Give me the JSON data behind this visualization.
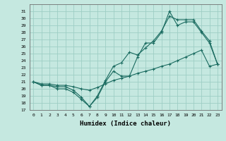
{
  "xlabel": "Humidex (Indice chaleur)",
  "xlim": [
    -0.5,
    23.5
  ],
  "ylim": [
    17,
    32
  ],
  "yticks": [
    17,
    18,
    19,
    20,
    21,
    22,
    23,
    24,
    25,
    26,
    27,
    28,
    29,
    30,
    31
  ],
  "xticks": [
    0,
    1,
    2,
    3,
    4,
    5,
    6,
    7,
    8,
    9,
    10,
    11,
    12,
    13,
    14,
    15,
    16,
    17,
    18,
    19,
    20,
    21,
    22,
    23
  ],
  "bg_color": "#c5e8e0",
  "grid_color": "#9ecec5",
  "line_color": "#1a6b60",
  "line1_x": [
    0,
    1,
    2,
    3,
    4,
    5,
    6,
    7,
    8,
    9,
    10,
    11,
    12,
    13,
    14,
    15,
    16,
    17,
    18,
    19,
    20,
    21,
    22,
    23
  ],
  "line1_y": [
    21.0,
    20.5,
    20.5,
    20.0,
    20.0,
    19.5,
    18.5,
    17.5,
    18.8,
    21.0,
    22.5,
    21.8,
    21.8,
    24.5,
    26.5,
    26.5,
    28.0,
    31.0,
    29.0,
    29.5,
    29.5,
    28.0,
    26.5,
    23.5
  ],
  "line2_x": [
    0,
    1,
    2,
    3,
    4,
    5,
    6,
    7,
    8,
    9,
    10,
    11,
    12,
    13,
    14,
    15,
    16,
    17,
    18,
    19,
    20,
    21,
    22,
    23
  ],
  "line2_y": [
    21.0,
    20.5,
    20.5,
    20.3,
    20.3,
    19.8,
    18.8,
    17.5,
    19.0,
    21.2,
    23.2,
    23.7,
    25.2,
    24.8,
    25.8,
    26.8,
    28.2,
    30.3,
    29.8,
    29.8,
    29.8,
    28.2,
    26.8,
    23.5
  ],
  "line3_x": [
    0,
    1,
    2,
    3,
    4,
    5,
    6,
    7,
    8,
    9,
    10,
    11,
    12,
    13,
    14,
    15,
    16,
    17,
    18,
    19,
    20,
    21,
    22,
    23
  ],
  "line3_y": [
    21.0,
    20.7,
    20.7,
    20.5,
    20.5,
    20.3,
    20.0,
    19.8,
    20.2,
    20.7,
    21.2,
    21.5,
    21.8,
    22.2,
    22.5,
    22.8,
    23.2,
    23.5,
    24.0,
    24.5,
    25.0,
    25.5,
    23.2,
    23.5
  ]
}
